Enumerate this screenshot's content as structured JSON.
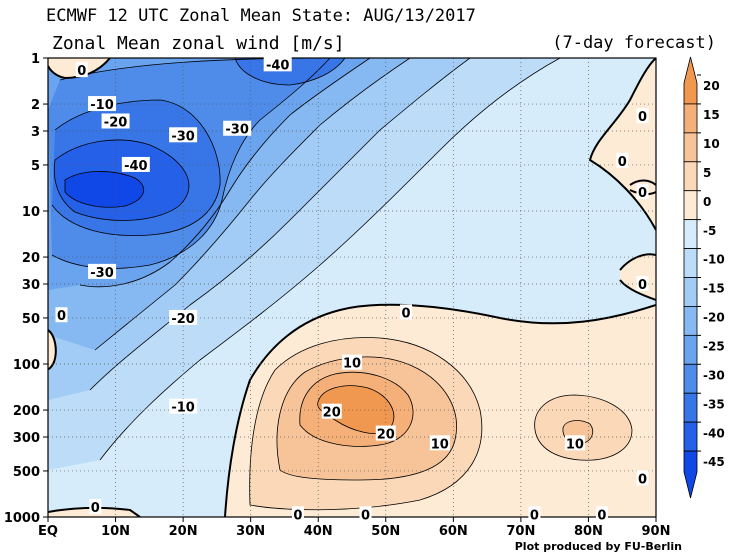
{
  "header": {
    "title": "ECMWF 12 UTC Zonal Mean State: AUG/13/2017",
    "subtitle": "Zonal Mean zonal wind [m/s]",
    "forecast": "(7-day forecast)",
    "credit": "Plot produced by FU-Berlin"
  },
  "chart_data": {
    "type": "heatmap",
    "title": "Zonal Mean zonal wind [m/s]",
    "x_ticks": [
      "EQ",
      "10N",
      "20N",
      "30N",
      "40N",
      "50N",
      "60N",
      "70N",
      "80N",
      "90N"
    ],
    "x_values": [
      0,
      10,
      20,
      30,
      40,
      50,
      60,
      70,
      80,
      90
    ],
    "y_ticks": [
      "1",
      "2",
      "3",
      "5",
      "10",
      "20",
      "30",
      "50",
      "100",
      "200",
      "300",
      "500",
      "1000"
    ],
    "y_values": [
      1,
      2,
      3,
      5,
      10,
      20,
      30,
      50,
      100,
      200,
      300,
      500,
      1000
    ],
    "y_scale": "log",
    "y_reversed": true,
    "xlim": [
      0,
      90
    ],
    "ylim": [
      1000,
      1
    ],
    "grid": true,
    "colorbar": {
      "ticks": [
        "20",
        "15",
        "10",
        "5",
        "0",
        "-5",
        "-10",
        "-15",
        "-20",
        "-25",
        "-30",
        "-35",
        "-40",
        "-45"
      ],
      "bins": [
        {
          "from": 20,
          "to": 25,
          "color": "#f09850"
        },
        {
          "from": 15,
          "to": 20,
          "color": "#f4b078"
        },
        {
          "from": 10,
          "to": 15,
          "color": "#f7c49a"
        },
        {
          "from": 5,
          "to": 10,
          "color": "#fad8b8"
        },
        {
          "from": 0,
          "to": 5,
          "color": "#fdebd6"
        },
        {
          "from": -5,
          "to": 0,
          "color": "#d6ecfb"
        },
        {
          "from": -10,
          "to": -5,
          "color": "#bcdcf8"
        },
        {
          "from": -15,
          "to": -10,
          "color": "#a2cbf5"
        },
        {
          "from": -20,
          "to": -15,
          "color": "#86b8f2"
        },
        {
          "from": -25,
          "to": -20,
          "color": "#6aa3ee"
        },
        {
          "from": -30,
          "to": -25,
          "color": "#4f8cea"
        },
        {
          "from": -35,
          "to": -30,
          "color": "#3876e8"
        },
        {
          "from": -40,
          "to": -35,
          "color": "#2460e8"
        },
        {
          "from": -45,
          "to": -40,
          "color": "#1048e8"
        }
      ]
    },
    "contour_labels": [
      {
        "text": "0",
        "lat": 5,
        "p": 1.2
      },
      {
        "text": "-10",
        "lat": 8,
        "p": 2
      },
      {
        "text": "-20",
        "lat": 10,
        "p": 2.6
      },
      {
        "text": "-40",
        "lat": 34,
        "p": 1.1
      },
      {
        "text": "-30",
        "lat": 20,
        "p": 3.2
      },
      {
        "text": "-30",
        "lat": 28,
        "p": 2.9
      },
      {
        "text": "-40",
        "lat": 13,
        "p": 5
      },
      {
        "text": "-30",
        "lat": 8,
        "p": 25
      },
      {
        "text": "0",
        "lat": 2,
        "p": 48
      },
      {
        "text": "-20",
        "lat": 20,
        "p": 50
      },
      {
        "text": "-10",
        "lat": 20,
        "p": 190
      },
      {
        "text": "0",
        "lat": 53,
        "p": 46
      },
      {
        "text": "10",
        "lat": 45,
        "p": 98
      },
      {
        "text": "20",
        "lat": 42,
        "p": 205
      },
      {
        "text": "20",
        "lat": 50,
        "p": 285
      },
      {
        "text": "10",
        "lat": 58,
        "p": 330
      },
      {
        "text": "10",
        "lat": 78,
        "p": 330
      },
      {
        "text": "0",
        "lat": 88,
        "p": 2.4
      },
      {
        "text": "0",
        "lat": 85,
        "p": 4.7
      },
      {
        "text": "0",
        "lat": 88,
        "p": 7.5
      },
      {
        "text": "0",
        "lat": 88,
        "p": 30
      },
      {
        "text": "0",
        "lat": 88,
        "p": 560
      },
      {
        "text": "0",
        "lat": 7,
        "p": 860
      },
      {
        "text": "0",
        "lat": 37,
        "p": 960
      },
      {
        "text": "0",
        "lat": 47,
        "p": 960
      },
      {
        "text": "0",
        "lat": 72,
        "p": 960
      },
      {
        "text": "0",
        "lat": 82,
        "p": 960
      }
    ]
  }
}
